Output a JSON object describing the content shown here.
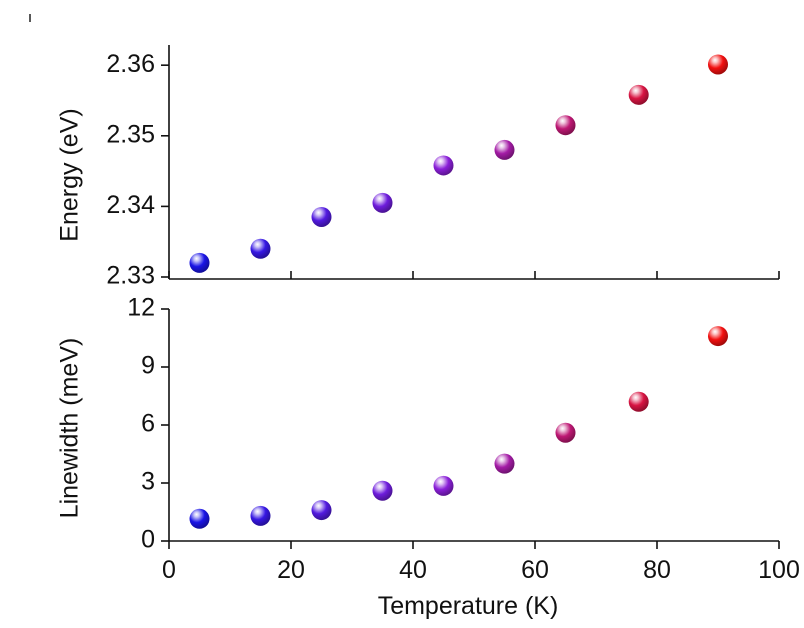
{
  "chart_data": {
    "type": "scatter",
    "shared_x": {
      "label": "Temperature (K)",
      "lim": [
        0,
        100
      ],
      "ticks": [
        0,
        20,
        40,
        60,
        80,
        100
      ],
      "tick_labels": [
        "0",
        "20",
        "40",
        "60",
        "80",
        "100"
      ]
    },
    "point_color_scale": {
      "low": "#1a14e6",
      "mid": "#8a1fd8",
      "high": "#f21010"
    },
    "panels": [
      {
        "id": "energy",
        "ylabel": "Energy (eV)",
        "ylim": [
          2.33,
          2.363
        ],
        "yticks": [
          2.33,
          2.34,
          2.35,
          2.36
        ],
        "ytick_labels": [
          "2.33",
          "2.34",
          "2.35",
          "2.36"
        ],
        "x": [
          5,
          15,
          25,
          35,
          45,
          55,
          65,
          77,
          90
        ],
        "y": [
          2.332,
          2.334,
          2.3385,
          2.3405,
          2.3458,
          2.348,
          2.3515,
          2.3558,
          2.3601
        ]
      },
      {
        "id": "linewidth",
        "ylabel": "Linewidth (meV)",
        "ylim": [
          0,
          12
        ],
        "yticks": [
          0,
          3,
          6,
          9,
          12
        ],
        "ytick_labels": [
          "0",
          "3",
          "6",
          "9",
          "12"
        ],
        "x": [
          5,
          15,
          25,
          35,
          45,
          55,
          65,
          77,
          90
        ],
        "y": [
          1.15,
          1.3,
          1.6,
          2.6,
          2.85,
          4.0,
          5.6,
          7.2,
          10.6
        ]
      }
    ]
  }
}
